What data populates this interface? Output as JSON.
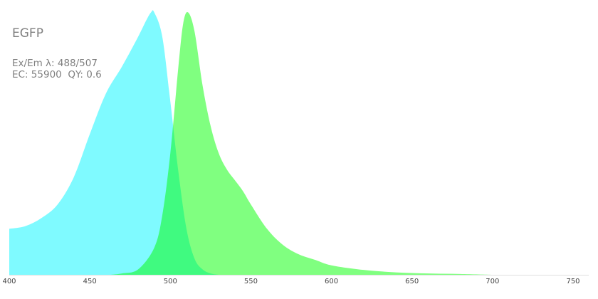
{
  "chart_data": {
    "type": "area",
    "title": "EGFP",
    "annotations": [
      "Ex/Em λ: 488/507",
      "EC: 55900  QY: 0.6"
    ],
    "xlabel": "",
    "ylabel": "",
    "xlim": [
      400,
      760
    ],
    "ylim": [
      0,
      1
    ],
    "xticks": [
      "400",
      "450",
      "500",
      "550",
      "600",
      "650",
      "700",
      "750"
    ],
    "grid": false,
    "series": [
      {
        "color": "#7ffaff",
        "x": [
          400,
          410,
          420,
          430,
          440,
          450,
          460,
          470,
          480,
          485,
          488,
          490,
          495,
          500,
          505,
          510,
          515,
          520,
          525,
          530
        ],
        "values": [
          0.17,
          0.18,
          0.21,
          0.26,
          0.36,
          0.52,
          0.67,
          0.77,
          0.88,
          0.94,
          0.97,
          0.97,
          0.88,
          0.64,
          0.38,
          0.17,
          0.06,
          0.02,
          0.005,
          0.0
        ]
      },
      {
        "color": "#80ff80",
        "x": [
          463,
          470,
          480,
          490,
          495,
          500,
          505,
          508,
          511,
          515,
          520,
          525,
          530,
          535,
          540,
          545,
          550,
          560,
          570,
          580,
          590,
          600,
          620,
          640,
          660,
          680,
          700
        ],
        "values": [
          0.0,
          0.005,
          0.02,
          0.1,
          0.22,
          0.45,
          0.77,
          0.93,
          0.97,
          0.9,
          0.7,
          0.55,
          0.45,
          0.39,
          0.35,
          0.31,
          0.26,
          0.17,
          0.11,
          0.075,
          0.055,
          0.035,
          0.018,
          0.009,
          0.005,
          0.003,
          0.0
        ]
      }
    ]
  }
}
